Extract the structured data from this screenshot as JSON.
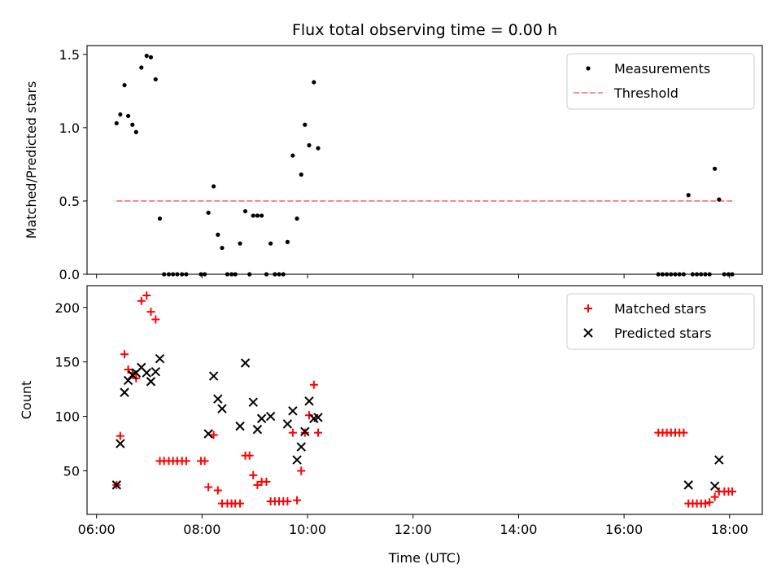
{
  "chart_data": {
    "title": "Flux total observing time = 0.00 h",
    "xlabel": "Time (UTC)",
    "x_unit": "hours UTC",
    "x_ticks": [
      6,
      8,
      10,
      12,
      14,
      16,
      18
    ],
    "x_tick_labels": [
      "06:00",
      "08:00",
      "10:00",
      "12:00",
      "14:00",
      "16:00",
      "18:00"
    ],
    "xlim": [
      5.82,
      18.62
    ],
    "panels": [
      {
        "type": "scatter",
        "ylabel": "Matched/Predicted stars",
        "ylim": [
          0,
          1.56
        ],
        "y_ticks": [
          0.0,
          0.5,
          1.0,
          1.5
        ],
        "y_tick_labels": [
          "0.0",
          "0.5",
          "1.0",
          "1.5"
        ],
        "legend_position": "top-right",
        "legend": [
          "Measurements",
          "Threshold"
        ],
        "threshold": {
          "name": "Threshold",
          "y": 0.5,
          "x_range": [
            6.38,
            18.05
          ],
          "color": "#ff7f7f",
          "style": "dashed"
        },
        "series": [
          {
            "name": "Measurements",
            "marker": "dot",
            "color": "#000000",
            "points": [
              [
                6.38,
                1.03
              ],
              [
                6.45,
                1.09
              ],
              [
                6.53,
                1.29
              ],
              [
                6.6,
                1.08
              ],
              [
                6.68,
                1.02
              ],
              [
                6.75,
                0.97
              ],
              [
                6.85,
                1.41
              ],
              [
                6.95,
                1.49
              ],
              [
                7.03,
                1.48
              ],
              [
                7.12,
                1.33
              ],
              [
                7.2,
                0.38
              ],
              [
                7.28,
                0.0
              ],
              [
                7.37,
                0.0
              ],
              [
                7.45,
                0.0
              ],
              [
                7.53,
                0.0
              ],
              [
                7.62,
                0.0
              ],
              [
                7.7,
                0.0
              ],
              [
                7.98,
                0.0
              ],
              [
                8.05,
                0.0
              ],
              [
                8.12,
                0.42
              ],
              [
                8.22,
                0.6
              ],
              [
                8.3,
                0.27
              ],
              [
                8.38,
                0.18
              ],
              [
                8.48,
                0.0
              ],
              [
                8.56,
                0.0
              ],
              [
                8.63,
                0.0
              ],
              [
                8.72,
                0.21
              ],
              [
                8.82,
                0.43
              ],
              [
                8.9,
                0.0
              ],
              [
                8.97,
                0.4
              ],
              [
                9.05,
                0.4
              ],
              [
                9.13,
                0.4
              ],
              [
                9.22,
                0.0
              ],
              [
                9.3,
                0.21
              ],
              [
                9.38,
                0.0
              ],
              [
                9.46,
                0.0
              ],
              [
                9.54,
                0.0
              ],
              [
                9.62,
                0.22
              ],
              [
                9.72,
                0.81
              ],
              [
                9.8,
                0.38
              ],
              [
                9.88,
                0.68
              ],
              [
                9.95,
                1.02
              ],
              [
                10.03,
                0.88
              ],
              [
                10.12,
                1.31
              ],
              [
                10.2,
                0.86
              ],
              [
                16.65,
                0.0
              ],
              [
                16.73,
                0.0
              ],
              [
                16.81,
                0.0
              ],
              [
                16.89,
                0.0
              ],
              [
                16.97,
                0.0
              ],
              [
                17.05,
                0.0
              ],
              [
                17.13,
                0.0
              ],
              [
                17.22,
                0.54
              ],
              [
                17.3,
                0.0
              ],
              [
                17.38,
                0.0
              ],
              [
                17.46,
                0.0
              ],
              [
                17.54,
                0.0
              ],
              [
                17.62,
                0.0
              ],
              [
                17.72,
                0.72
              ],
              [
                17.8,
                0.51
              ],
              [
                17.9,
                0.0
              ],
              [
                17.98,
                0.0
              ],
              [
                18.05,
                0.0
              ]
            ]
          }
        ]
      },
      {
        "type": "scatter",
        "ylabel": "Count",
        "ylim": [
          10,
          220
        ],
        "y_ticks": [
          50,
          100,
          150,
          200
        ],
        "y_tick_labels": [
          "50",
          "100",
          "150",
          "200"
        ],
        "legend_position": "top-right",
        "legend": [
          "Matched stars",
          "Predicted stars"
        ],
        "series": [
          {
            "name": "Matched stars",
            "marker": "plus",
            "color": "#ff0000",
            "points": [
              [
                6.38,
                37
              ],
              [
                6.45,
                82
              ],
              [
                6.53,
                157
              ],
              [
                6.6,
                143
              ],
              [
                6.68,
                140
              ],
              [
                6.75,
                135
              ],
              [
                6.85,
                206
              ],
              [
                6.95,
                211
              ],
              [
                7.03,
                196
              ],
              [
                7.12,
                189
              ],
              [
                7.2,
                59
              ],
              [
                7.28,
                59
              ],
              [
                7.37,
                59
              ],
              [
                7.45,
                59
              ],
              [
                7.53,
                59
              ],
              [
                7.62,
                59
              ],
              [
                7.7,
                59
              ],
              [
                7.98,
                59
              ],
              [
                8.05,
                59
              ],
              [
                8.12,
                35
              ],
              [
                8.22,
                83
              ],
              [
                8.3,
                32
              ],
              [
                8.38,
                20
              ],
              [
                8.48,
                20
              ],
              [
                8.56,
                20
              ],
              [
                8.63,
                20
              ],
              [
                8.72,
                20
              ],
              [
                8.82,
                64
              ],
              [
                8.9,
                64
              ],
              [
                8.97,
                46
              ],
              [
                9.05,
                37
              ],
              [
                9.13,
                40
              ],
              [
                9.22,
                40
              ],
              [
                9.3,
                22
              ],
              [
                9.38,
                22
              ],
              [
                9.46,
                22
              ],
              [
                9.54,
                22
              ],
              [
                9.62,
                22
              ],
              [
                9.72,
                85
              ],
              [
                9.8,
                23
              ],
              [
                9.88,
                50
              ],
              [
                9.95,
                85
              ],
              [
                10.03,
                101
              ],
              [
                10.12,
                129
              ],
              [
                10.2,
                85
              ],
              [
                16.65,
                85
              ],
              [
                16.73,
                85
              ],
              [
                16.81,
                85
              ],
              [
                16.89,
                85
              ],
              [
                16.97,
                85
              ],
              [
                17.05,
                85
              ],
              [
                17.13,
                85
              ],
              [
                17.22,
                20
              ],
              [
                17.3,
                20
              ],
              [
                17.38,
                20
              ],
              [
                17.46,
                20
              ],
              [
                17.54,
                20
              ],
              [
                17.62,
                21
              ],
              [
                17.72,
                26
              ],
              [
                17.8,
                31
              ],
              [
                17.9,
                31
              ],
              [
                17.98,
                31
              ],
              [
                18.05,
                31
              ]
            ]
          },
          {
            "name": "Predicted stars",
            "marker": "x",
            "color": "#000000",
            "points": [
              [
                6.38,
                37
              ],
              [
                6.45,
                75
              ],
              [
                6.53,
                122
              ],
              [
                6.6,
                133
              ],
              [
                6.68,
                138
              ],
              [
                6.75,
                140
              ],
              [
                6.85,
                145
              ],
              [
                6.95,
                140
              ],
              [
                7.03,
                132
              ],
              [
                7.12,
                141
              ],
              [
                7.2,
                153
              ],
              [
                8.12,
                84
              ],
              [
                8.22,
                137
              ],
              [
                8.3,
                116
              ],
              [
                8.38,
                107
              ],
              [
                8.72,
                91
              ],
              [
                8.82,
                149
              ],
              [
                8.97,
                113
              ],
              [
                9.05,
                88
              ],
              [
                9.13,
                98
              ],
              [
                9.3,
                100
              ],
              [
                9.62,
                93
              ],
              [
                9.72,
                105
              ],
              [
                9.8,
                60
              ],
              [
                9.88,
                72
              ],
              [
                9.95,
                86
              ],
              [
                10.03,
                114
              ],
              [
                10.12,
                98
              ],
              [
                10.2,
                99
              ],
              [
                17.22,
                37
              ],
              [
                17.72,
                36
              ],
              [
                17.8,
                60
              ]
            ]
          }
        ]
      }
    ],
    "colors": {
      "threshold": "#ff7f7f",
      "matched": "#ff0000",
      "predicted": "#000000",
      "measurements": "#000000"
    }
  }
}
